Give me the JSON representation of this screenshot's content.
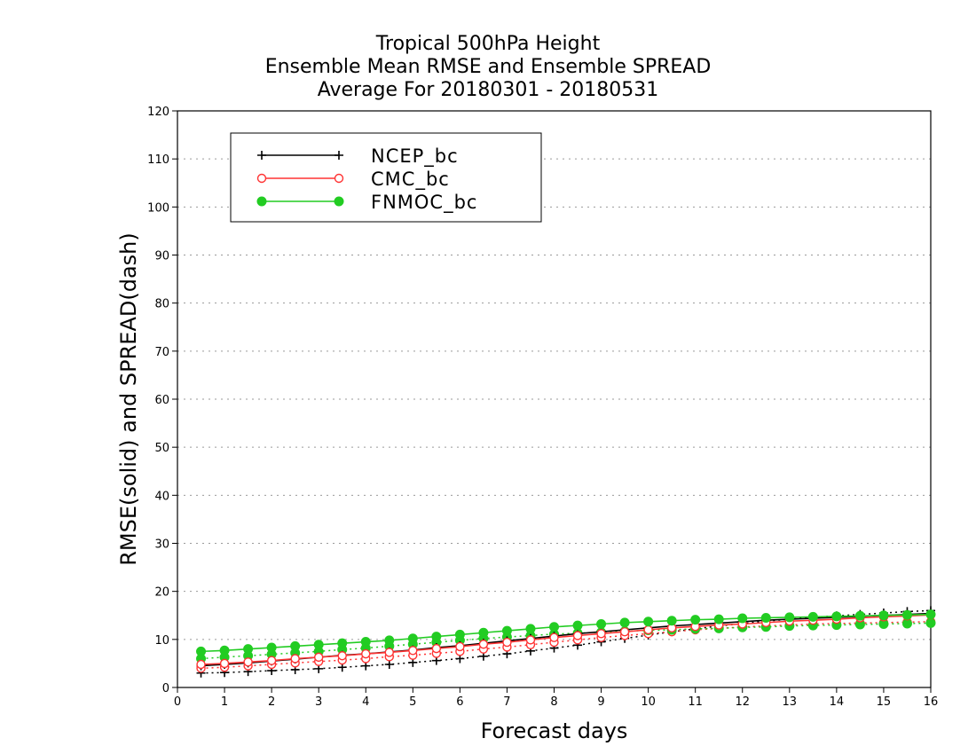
{
  "chart_data": {
    "type": "line",
    "title": [
      "Tropical 500hPa Height",
      "Ensemble Mean RMSE and Ensemble SPREAD",
      "Average For 20180301 - 20180531"
    ],
    "xlabel": "Forecast days",
    "ylabel": "RMSE(solid) and SPREAD(dash)",
    "xlim": [
      0,
      16
    ],
    "ylim": [
      0,
      120
    ],
    "xticks": [
      0,
      1,
      2,
      3,
      4,
      5,
      6,
      7,
      8,
      9,
      10,
      11,
      12,
      13,
      14,
      15,
      16
    ],
    "yticks": [
      0,
      10,
      20,
      30,
      40,
      50,
      60,
      70,
      80,
      90,
      100,
      110,
      120
    ],
    "grid": "horizontal dotted",
    "legend_position": "top-left",
    "x": [
      0.5,
      1,
      1.5,
      2,
      2.5,
      3,
      3.5,
      4,
      4.5,
      5,
      5.5,
      6,
      6.5,
      7,
      7.5,
      8,
      8.5,
      9,
      9.5,
      10,
      10.5,
      11,
      11.5,
      12,
      12.5,
      13,
      13.5,
      14,
      14.5,
      15,
      15.5,
      16
    ],
    "series": [
      {
        "name": "NCEP_bc",
        "color": "#000000",
        "marker": "plus",
        "rmse": [
          4.5,
          4.8,
          5.1,
          5.5,
          5.9,
          6.3,
          6.7,
          7.0,
          7.4,
          7.8,
          8.3,
          8.7,
          9.2,
          9.7,
          10.2,
          10.7,
          11.2,
          11.6,
          12.0,
          12.4,
          12.8,
          13.1,
          13.4,
          13.7,
          14.0,
          14.2,
          14.4,
          14.6,
          14.8,
          15.0,
          15.2,
          15.4
        ],
        "spread": [
          3.0,
          3.1,
          3.3,
          3.5,
          3.7,
          3.9,
          4.2,
          4.5,
          4.8,
          5.2,
          5.6,
          6.0,
          6.5,
          7.0,
          7.6,
          8.2,
          8.8,
          9.5,
          10.2,
          10.9,
          11.6,
          12.2,
          12.8,
          13.3,
          13.8,
          14.2,
          14.6,
          14.9,
          15.2,
          15.5,
          15.8,
          16.0
        ]
      },
      {
        "name": "CMC_bc",
        "color": "#ff3333",
        "marker": "open-circle",
        "rmse": [
          4.8,
          5.0,
          5.3,
          5.6,
          6.0,
          6.3,
          6.6,
          7.0,
          7.3,
          7.7,
          8.1,
          8.5,
          9.0,
          9.4,
          9.9,
          10.4,
          10.8,
          11.2,
          11.6,
          12.0,
          12.4,
          12.7,
          13.0,
          13.2,
          13.5,
          13.8,
          14.0,
          14.2,
          14.5,
          14.7,
          14.9,
          15.1
        ],
        "spread": [
          4.0,
          4.2,
          4.5,
          4.8,
          5.1,
          5.4,
          5.7,
          6.0,
          6.4,
          6.7,
          7.1,
          7.5,
          8.0,
          8.4,
          8.9,
          9.4,
          9.9,
          10.4,
          10.8,
          11.2,
          11.6,
          12.0,
          12.3,
          12.6,
          12.8,
          13.0,
          13.2,
          13.3,
          13.4,
          13.5,
          13.6,
          13.7
        ]
      },
      {
        "name": "FNMOC_bc",
        "color": "#22cc22",
        "marker": "filled-circle",
        "rmse": [
          7.5,
          7.7,
          8.0,
          8.3,
          8.6,
          8.9,
          9.2,
          9.5,
          9.8,
          10.2,
          10.6,
          11.0,
          11.4,
          11.8,
          12.2,
          12.6,
          12.9,
          13.2,
          13.5,
          13.7,
          13.9,
          14.1,
          14.2,
          14.4,
          14.5,
          14.6,
          14.7,
          14.8,
          14.9,
          15.0,
          15.1,
          15.2
        ],
        "spread": [
          6.0,
          6.3,
          6.6,
          6.9,
          7.2,
          7.5,
          7.9,
          8.2,
          8.6,
          9.0,
          9.4,
          9.8,
          10.2,
          10.5,
          10.8,
          11.1,
          11.3,
          11.5,
          11.7,
          11.9,
          12.0,
          12.2,
          12.3,
          12.5,
          12.6,
          12.8,
          12.9,
          13.0,
          13.1,
          13.2,
          13.3,
          13.4
        ]
      }
    ]
  }
}
